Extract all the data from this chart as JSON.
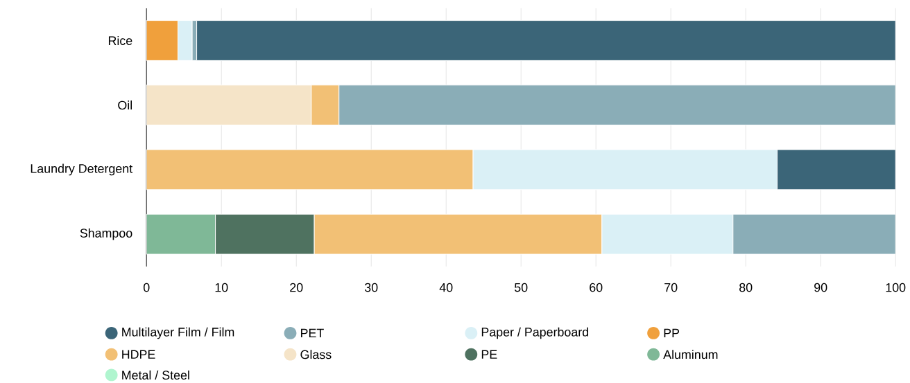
{
  "chart_data": {
    "type": "bar",
    "orientation": "horizontal",
    "stacked": true,
    "categories": [
      "Rice",
      "Oil",
      "Laundry Detergent",
      "Shampoo"
    ],
    "series": [
      {
        "name": "Metal / Steel",
        "color": "#b0f5cf",
        "values": [
          null,
          null,
          null,
          null
        ]
      },
      {
        "name": "Aluminum",
        "color": "#7fb897",
        "values": [
          null,
          null,
          null,
          9.2
        ]
      },
      {
        "name": "PE",
        "color": "#4f7260",
        "values": [
          null,
          null,
          null,
          13.2
        ]
      },
      {
        "name": "Glass",
        "color": "#f5e4c8",
        "values": [
          null,
          22.0,
          null,
          null
        ]
      },
      {
        "name": "HDPE",
        "color": "#f2c075",
        "values": [
          null,
          3.7,
          43.6,
          38.4
        ]
      },
      {
        "name": "PP",
        "color": "#f0a03c",
        "values": [
          4.2,
          null,
          null,
          null
        ]
      },
      {
        "name": "Paper / Paperboard",
        "color": "#daf0f6",
        "values": [
          1.9,
          null,
          40.6,
          17.5
        ]
      },
      {
        "name": "PET",
        "color": "#8aadb7",
        "values": [
          0.6,
          74.3,
          null,
          21.7
        ]
      },
      {
        "name": "Multilayer Film / Film",
        "color": "#3b6578",
        "values": [
          93.3,
          null,
          15.8,
          null
        ]
      }
    ],
    "xlim": [
      0,
      100
    ],
    "xticks": [
      0,
      10,
      20,
      30,
      40,
      50,
      60,
      70,
      80,
      90,
      100
    ],
    "grid": "x",
    "legend": "bottom"
  }
}
